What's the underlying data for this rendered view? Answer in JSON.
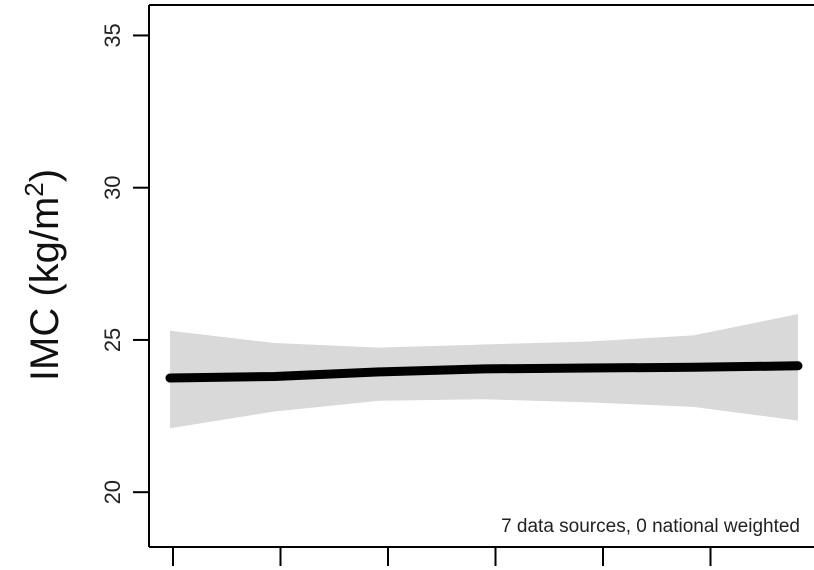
{
  "chart_data": {
    "type": "line",
    "ylabel": "IMC (kg/m",
    "ylabel_sup": "2",
    "ylabel_close": ")",
    "annotation": "7 data sources, 0 national weighted",
    "ylim": [
      18.2,
      36
    ],
    "y_ticks": [
      20,
      25,
      30,
      35
    ],
    "y_tick_labels": [
      "20",
      "25",
      "30",
      "35"
    ],
    "x_tick_count": 6,
    "x": [
      0,
      1,
      2,
      3,
      4,
      5,
      6
    ],
    "series": [
      {
        "values": [
          23.75,
          23.8,
          23.95,
          24.05,
          24.08,
          24.1,
          24.15
        ],
        "lower": [
          22.1,
          22.65,
          23.0,
          23.05,
          22.95,
          22.8,
          22.35
        ],
        "upper": [
          25.3,
          24.9,
          24.75,
          24.85,
          24.95,
          25.15,
          25.85
        ]
      }
    ],
    "line_color": "#000000",
    "band_color": "#d9d9d9",
    "grid": false
  }
}
